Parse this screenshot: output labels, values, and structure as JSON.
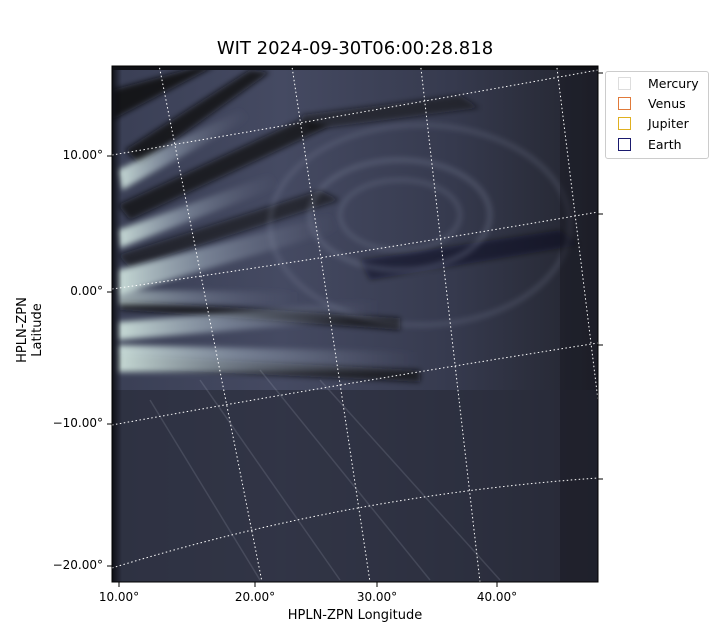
{
  "title": "WIT 2024-09-30T06:00:28.818",
  "axes": {
    "xlabel": "HPLN-ZPN Longitude",
    "ylabel": "HPLN-ZPN Latitude",
    "x_ticks": [
      "10.00°",
      "20.00°",
      "30.00°",
      "40.00°"
    ],
    "y_ticks": [
      "10.00°",
      "0.00°",
      "−10.00°",
      "−20.00°"
    ]
  },
  "legend": {
    "items": [
      {
        "label": "Mercury",
        "color": "#dddddd"
      },
      {
        "label": "Venus",
        "color": "#e07a3a"
      },
      {
        "label": "Jupiter",
        "color": "#e0b020"
      },
      {
        "label": "Earth",
        "color": "#1a1a6e"
      }
    ]
  },
  "colors": {
    "background_dark": "#1b1d28",
    "streamer_light": "#c8dcd6",
    "grid": "#ffffff"
  }
}
